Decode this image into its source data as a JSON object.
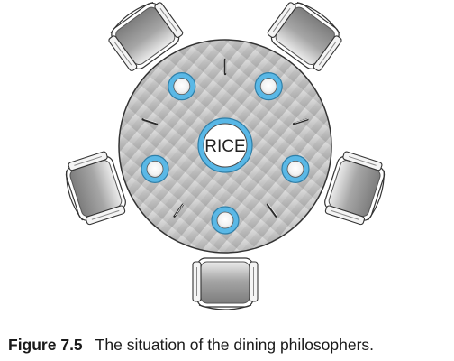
{
  "diagram": {
    "center_label": "RICE",
    "philosophers": 5,
    "chopsticks": 5
  },
  "caption": {
    "label": "Figure 7.5",
    "text": "The situation of the dining philosophers."
  }
}
